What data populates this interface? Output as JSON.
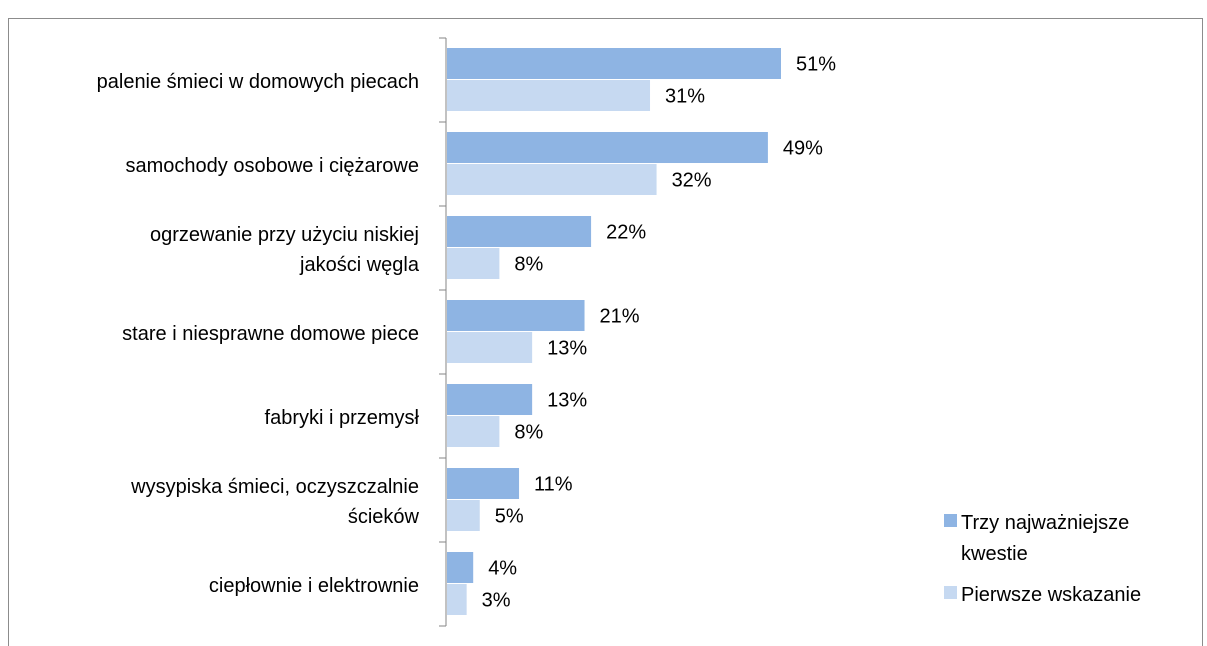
{
  "chart_data": {
    "type": "bar",
    "orientation": "horizontal",
    "title": "",
    "xlabel": "",
    "ylabel": "",
    "xlim": [
      0,
      55
    ],
    "grid": false,
    "legend_position": "bottom-right",
    "categories": [
      "palenie śmieci w domowych piecach",
      "samochody osobowe i ciężarowe",
      "ogrzewanie przy użyciu niskiej jakości węgla",
      "stare i niesprawne domowe piece",
      "fabryki i przemysł",
      "wysypiska śmieci, oczyszczalnie ścieków",
      "ciepłownie i elektrownie"
    ],
    "category_lines": [
      [
        "palenie śmieci w domowych piecach"
      ],
      [
        "samochody osobowe i ciężarowe"
      ],
      [
        "ogrzewanie przy użyciu niskiej",
        "jakości węgla"
      ],
      [
        "stare i niesprawne domowe piece"
      ],
      [
        "fabryki i przemysł"
      ],
      [
        "wysypiska śmieci, oczyszczalnie",
        "ścieków"
      ],
      [
        "ciepłownie i elektrownie"
      ]
    ],
    "series": [
      {
        "name": "Trzy najważniejsze kwestie",
        "legend_lines": [
          "Trzy najważniejsze",
          "kwestie"
        ],
        "color": "#8eb4e3",
        "values": [
          51,
          49,
          22,
          21,
          13,
          11,
          4
        ],
        "labels": [
          "51%",
          "49%",
          "22%",
          "21%",
          "13%",
          "11%",
          "4%"
        ]
      },
      {
        "name": "Pierwsze wskazanie",
        "legend_lines": [
          "Pierwsze wskazanie"
        ],
        "color": "#c6d9f1",
        "values": [
          31,
          32,
          8,
          13,
          8,
          5,
          3
        ],
        "labels": [
          "31%",
          "32%",
          "8%",
          "13%",
          "8%",
          "5%",
          "3%"
        ]
      }
    ]
  }
}
